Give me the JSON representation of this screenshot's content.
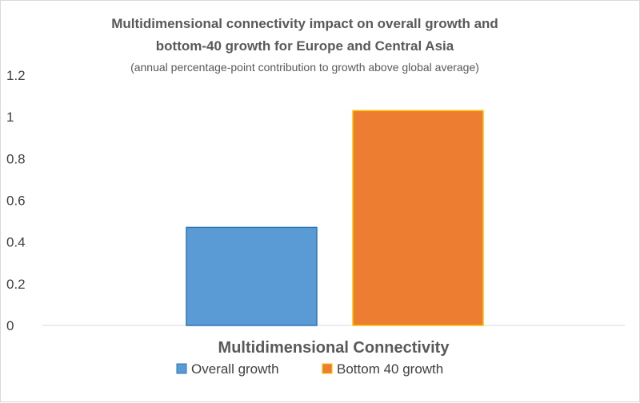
{
  "chart_data": {
    "type": "bar",
    "title_line1": "Multidimensional connectivity impact on overall growth and",
    "title_line2": "bottom-40 growth for Europe and Central Asia",
    "subtitle": "(annual percentage-point contribution to growth above global average)",
    "categories": [
      "Multidimensional Connectivity"
    ],
    "series": [
      {
        "name": "Overall growth",
        "values": [
          0.47
        ],
        "color": "#5b9bd5",
        "stroke": "#2e75b6"
      },
      {
        "name": "Bottom 40 growth",
        "values": [
          1.03
        ],
        "color": "#ed7d31",
        "stroke": "#ffc000"
      }
    ],
    "yticks": [
      "0",
      "0.2",
      "0.4",
      "0.6",
      "0.8",
      "1",
      "1.2"
    ],
    "ylim": [
      0,
      1.2
    ],
    "grid": false,
    "legend": "bottom"
  }
}
